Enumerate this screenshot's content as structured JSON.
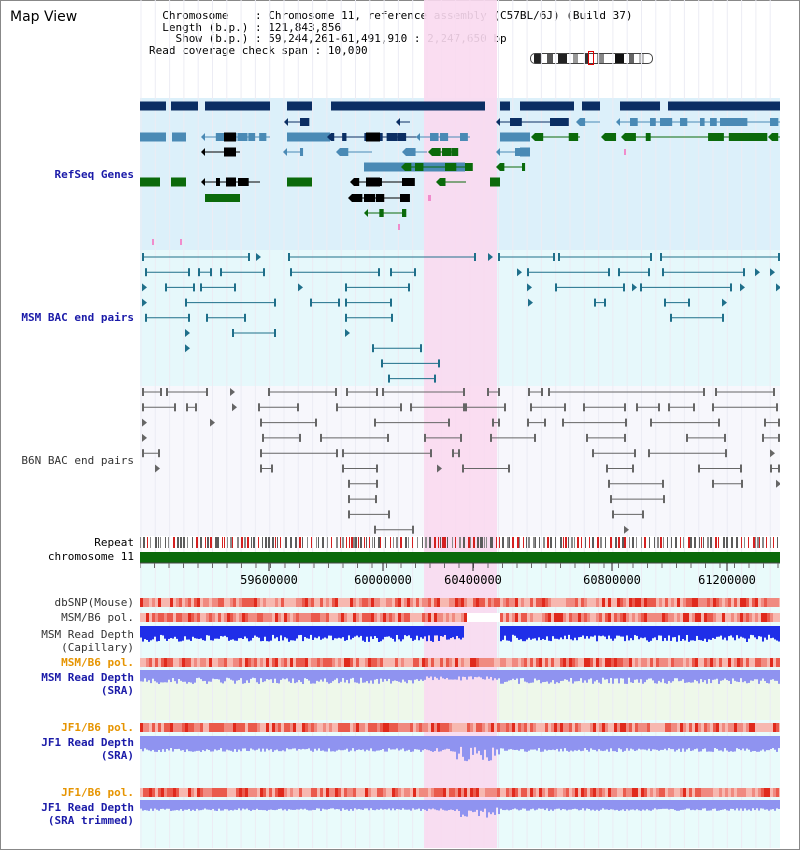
{
  "title": "Map View",
  "header": {
    "chromosome_key": "Chromosome",
    "chromosome_value": "Chromosome 11, reference assembly (C57BL/6J) (Build 37)",
    "length_key": "Length (b.p.)",
    "length_value": "121,843,856",
    "show_key": "Show (b.p.)",
    "show_value": "59,244,261-61,491,910 : 2,247,650 bp",
    "read_key": "Read coverage check span",
    "read_value": "10,000"
  },
  "tracks": {
    "refseq": "RefSeq Genes",
    "msm_bac": "MSM BAC end pairs",
    "b6n_bac": "B6N BAC end pairs",
    "repeat": "Repeat",
    "chromosome": "chromosome 11",
    "dbsnp": "dbSNP(Mouse)",
    "msm_b6_pol_1": "MSM/B6 pol.",
    "msm_depth_cap_1": "MSM Read Depth",
    "msm_depth_cap_2": "(Capillary)",
    "msm_b6_pol_2": "MSM/B6 pol.",
    "msm_depth_sra_1": "MSM Read Depth",
    "msm_depth_sra_2": "(SRA)",
    "jf1_b6_pol_1": "JF1/B6 pol.",
    "jf1_depth_1": "JF1 Read Depth",
    "jf1_depth_2": "(SRA)",
    "jf1_b6_pol_2": "JF1/B6 pol.",
    "jf1_trim_1": "JF1 Read Depth",
    "jf1_trim_2": "(SRA trimmed)"
  },
  "axis_ticks": [
    "59600000",
    "60000000",
    "60400000",
    "60800000",
    "61200000"
  ],
  "colors": {
    "gene_dark": "#0b2e63",
    "gene_mid": "#4a8ab5",
    "gene_green": "#0b6a0b",
    "msm_bac": "#1f6f8a",
    "b6n_bac": "#666666",
    "refseq_bg": "#dcf0fa",
    "msm_bg": "#e6f8fb",
    "highlight": "#fad9f0",
    "depth_cap": "#1f2ee8",
    "depth_sra": "#8f93f0"
  }
}
